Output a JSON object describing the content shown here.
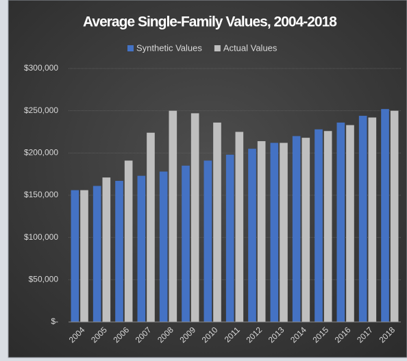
{
  "chart_data": {
    "type": "bar",
    "title": "Average Single-Family Values, 2004-2018",
    "categories": [
      "2004",
      "2005",
      "2006",
      "2007",
      "2008",
      "2009",
      "2010",
      "2011",
      "2012",
      "2013",
      "2014",
      "2015",
      "2016",
      "2017",
      "2018"
    ],
    "series": [
      {
        "name": "Synthetic Values",
        "color": "#4472c4",
        "values": [
          156000,
          161000,
          167000,
          173000,
          178000,
          185000,
          191000,
          198000,
          205000,
          212000,
          220000,
          228000,
          236000,
          244000,
          252000
        ]
      },
      {
        "name": "Actual Values",
        "color": "#bfbfbf",
        "values": [
          156000,
          171000,
          191000,
          224000,
          250000,
          247000,
          236000,
          225000,
          214000,
          212000,
          218000,
          226000,
          233000,
          242000,
          250000
        ]
      }
    ],
    "ylim": [
      0,
      300000
    ],
    "yticks": [
      {
        "value": 0,
        "label": "$-"
      },
      {
        "value": 50000,
        "label": "$50,000"
      },
      {
        "value": 100000,
        "label": "$100,000"
      },
      {
        "value": 150000,
        "label": "$150,000"
      },
      {
        "value": 200000,
        "label": "$200,000"
      },
      {
        "value": 250000,
        "label": "$250,000"
      },
      {
        "value": 300000,
        "label": "$300,000"
      }
    ],
    "grid": true,
    "legend": "top"
  }
}
